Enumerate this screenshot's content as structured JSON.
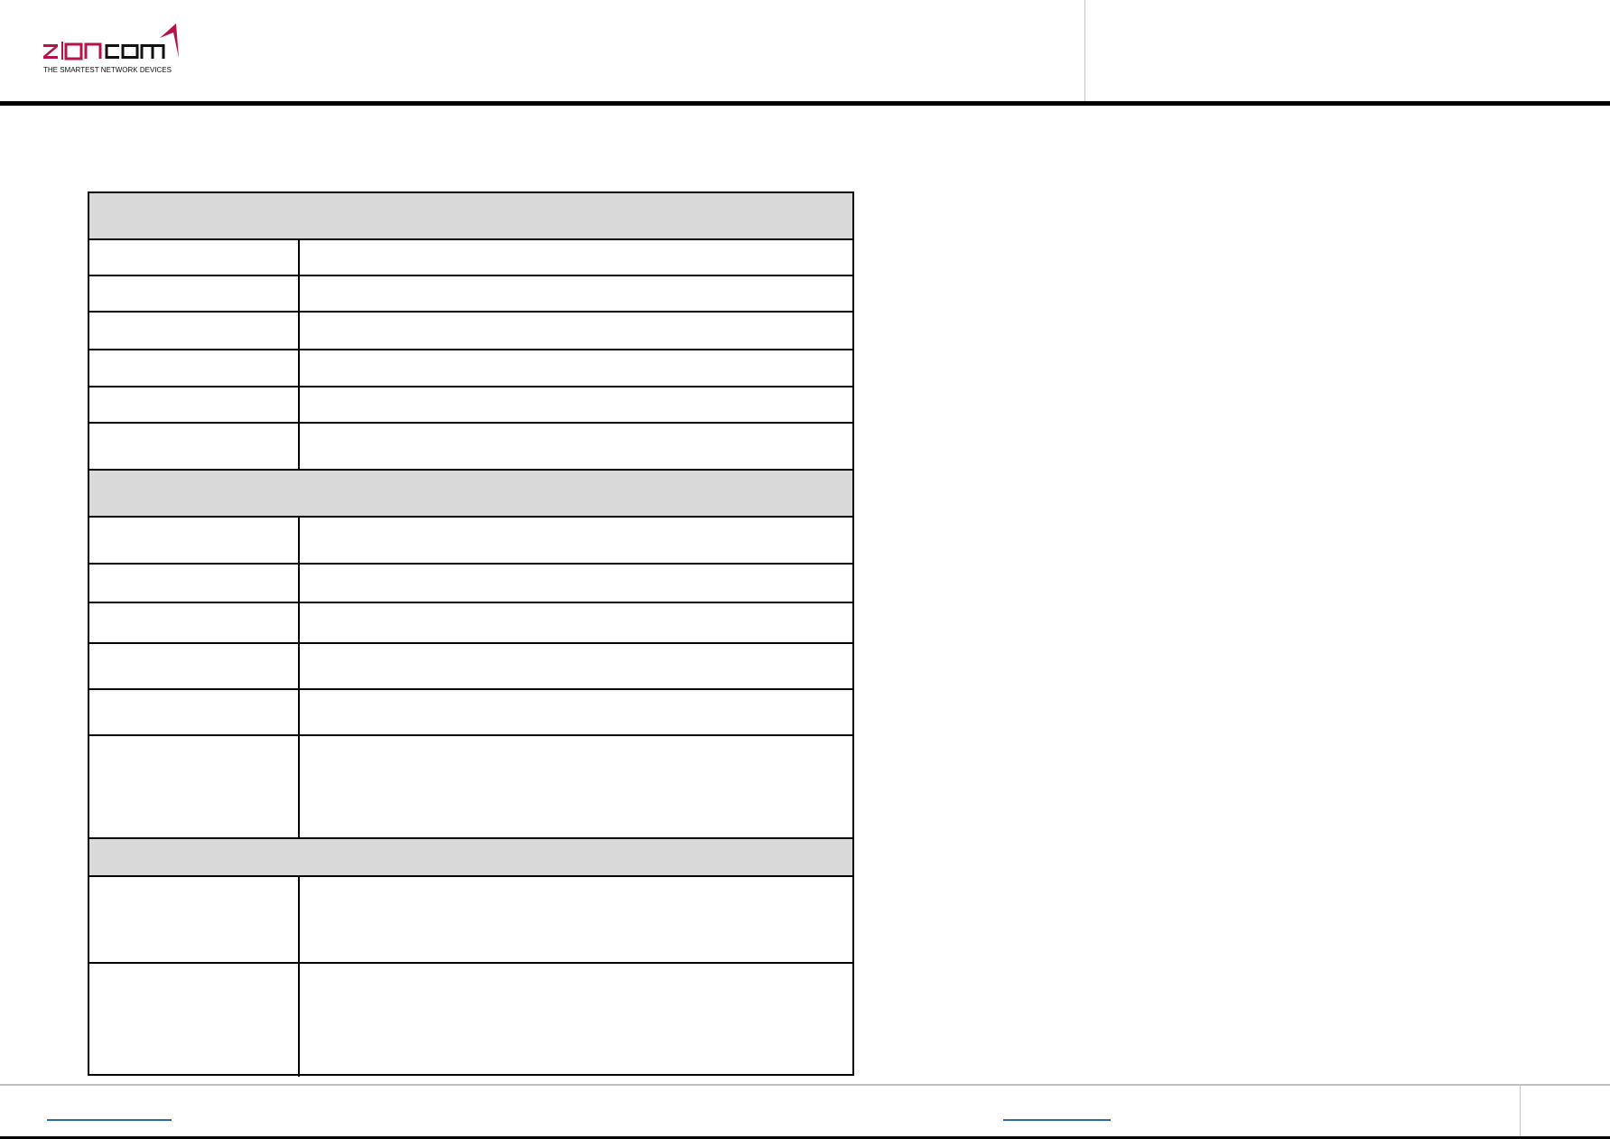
{
  "header": {
    "logo": {
      "wordmark": "zioncom",
      "tagline": "THE SMARTEST NETWORK DEVICES",
      "brand_color": "#b5134a",
      "text_color": "#111111"
    }
  },
  "table": {
    "section_fill": "#d9d9d9",
    "sections": [
      {
        "heading": "",
        "rows": [
          {
            "label": "",
            "value": ""
          },
          {
            "label": "",
            "value": ""
          },
          {
            "label": "",
            "value": ""
          },
          {
            "label": "",
            "value": ""
          },
          {
            "label": "",
            "value": ""
          },
          {
            "label": "",
            "value": ""
          }
        ]
      },
      {
        "heading": "",
        "rows": [
          {
            "label": "",
            "value": ""
          },
          {
            "label": "",
            "value": ""
          },
          {
            "label": "",
            "value": ""
          },
          {
            "label": "",
            "value": ""
          },
          {
            "label": "",
            "value": ""
          },
          {
            "label": "",
            "value": ""
          }
        ]
      },
      {
        "heading": "",
        "rows": [
          {
            "label": "",
            "value": ""
          },
          {
            "label": "",
            "value": ""
          }
        ]
      }
    ]
  },
  "footer": {
    "link_color": "#2e6aa6"
  }
}
